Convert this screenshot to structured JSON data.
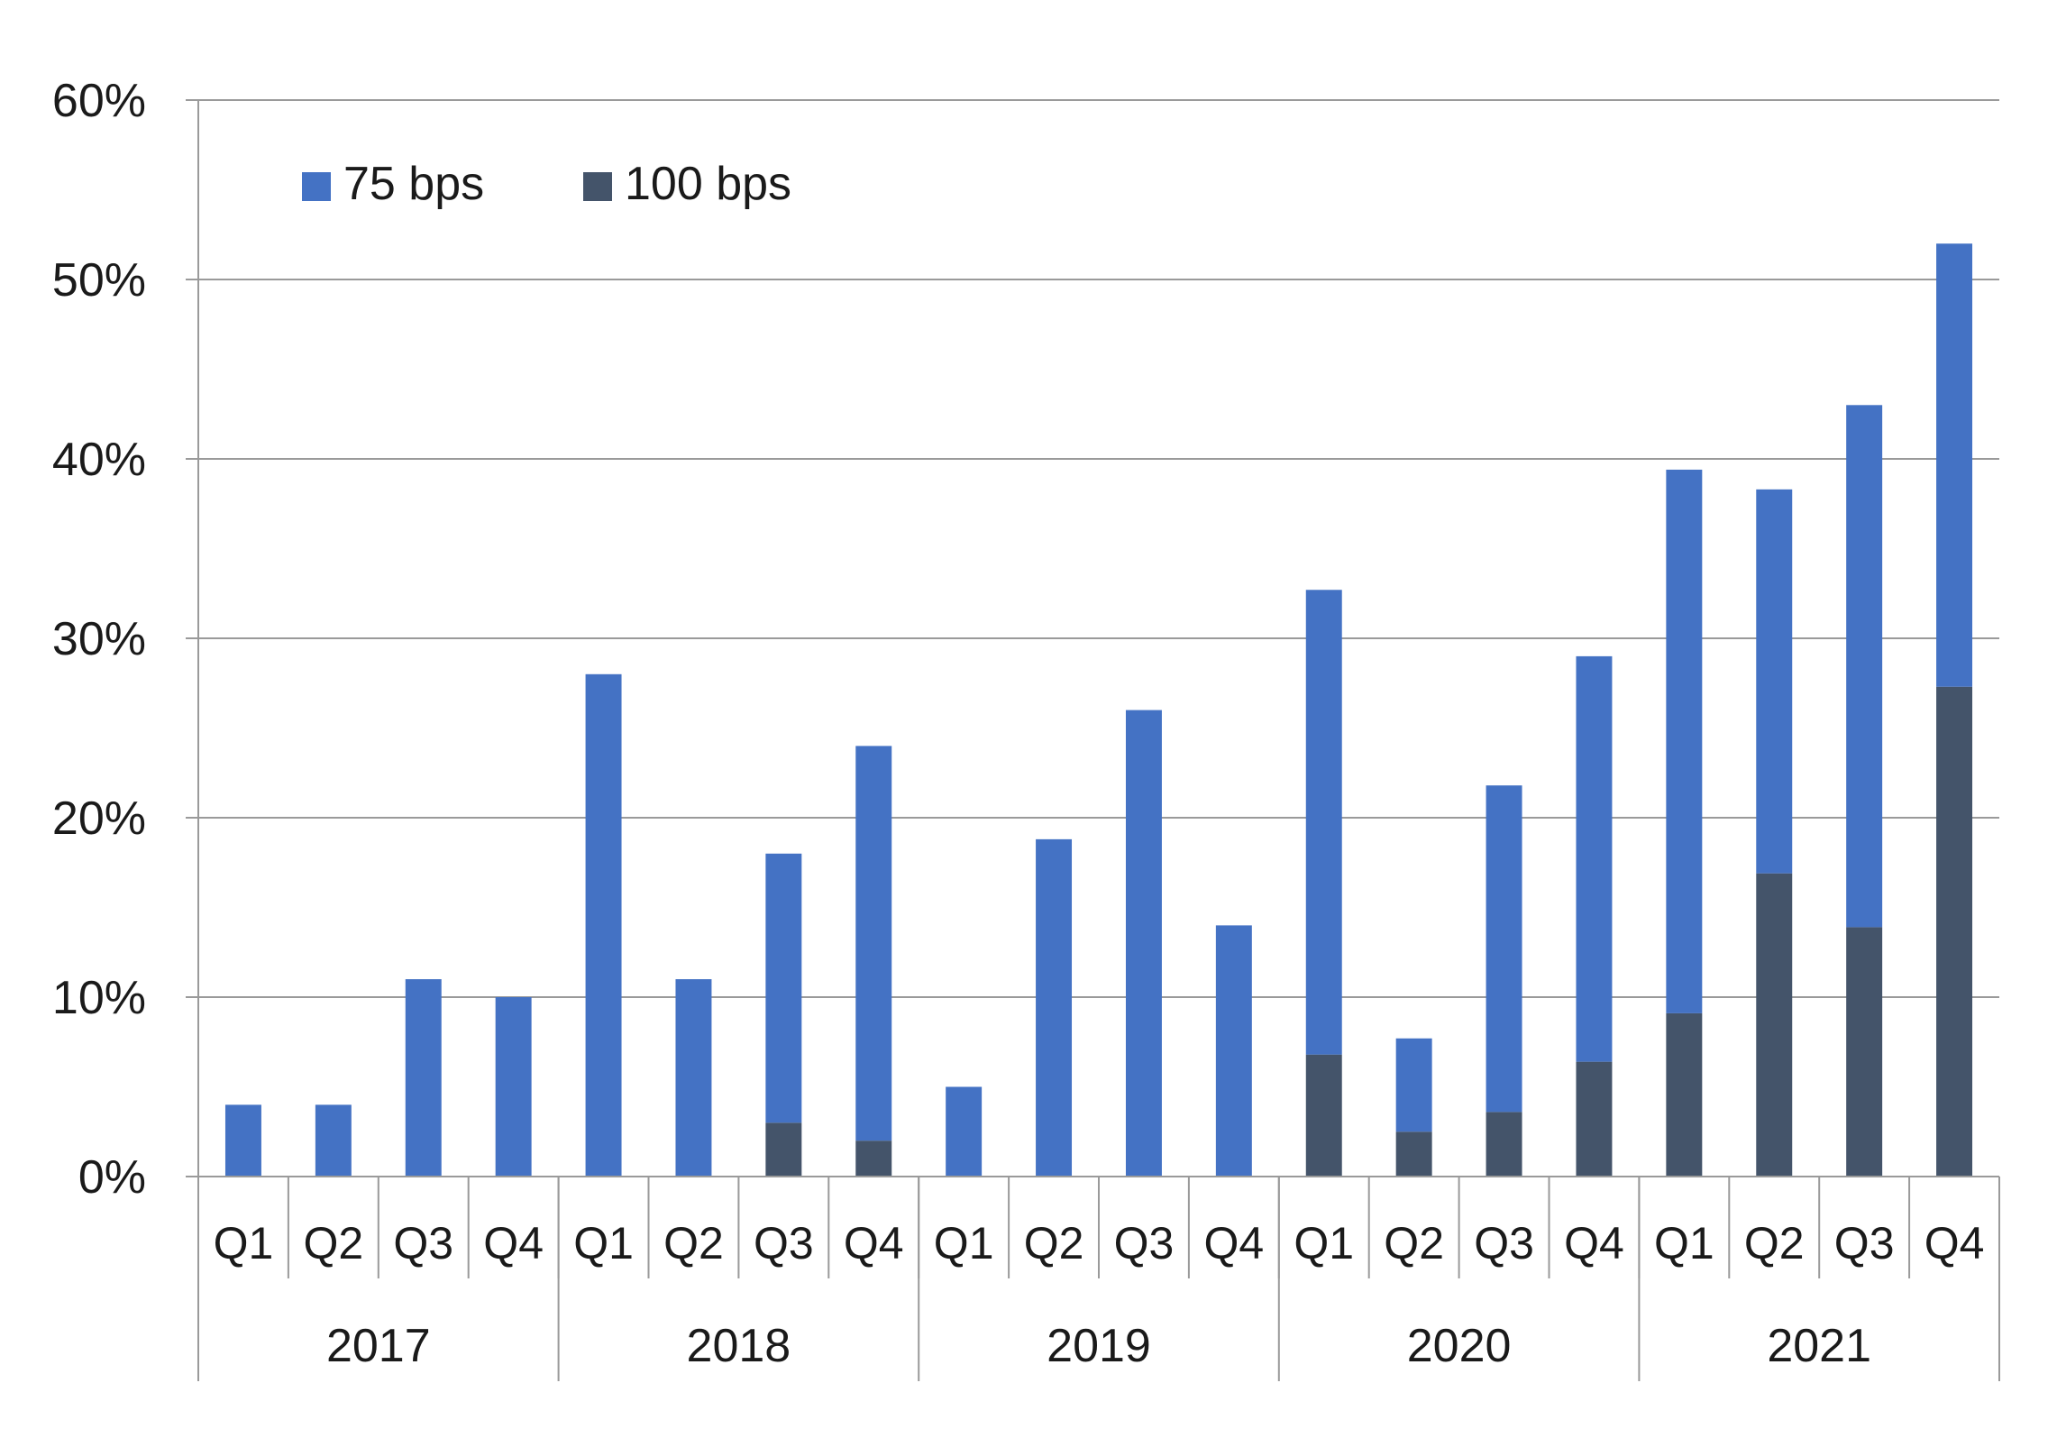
{
  "chart_data": {
    "type": "bar",
    "stacked": true,
    "title": "",
    "xlabel": "",
    "ylabel": "",
    "ylim": [
      0,
      60
    ],
    "yticks": [
      0,
      10,
      20,
      30,
      40,
      50,
      60
    ],
    "y_tick_format": "%",
    "grid": "horizontal",
    "legend_position": "top-left",
    "categories": [
      "Q1",
      "Q2",
      "Q3",
      "Q4",
      "Q1",
      "Q2",
      "Q3",
      "Q4",
      "Q1",
      "Q2",
      "Q3",
      "Q4",
      "Q1",
      "Q2",
      "Q3",
      "Q4",
      "Q1",
      "Q2",
      "Q3",
      "Q4"
    ],
    "groups": [
      {
        "label": "2017",
        "count": 4
      },
      {
        "label": "2018",
        "count": 4
      },
      {
        "label": "2019",
        "count": 4
      },
      {
        "label": "2020",
        "count": 4
      },
      {
        "label": "2021",
        "count": 4
      }
    ],
    "series": [
      {
        "name": "100 bps",
        "color": "#44546a",
        "values": [
          0,
          0,
          0,
          0,
          0,
          0,
          3,
          2,
          0,
          0,
          0,
          0,
          6.8,
          2.5,
          3.6,
          6.4,
          9.1,
          16.9,
          13.9,
          27.3
        ]
      },
      {
        "name": "75 bps",
        "color": "#4472c4",
        "values": [
          4,
          4,
          11,
          10,
          28,
          11,
          15,
          22,
          5,
          18.8,
          26,
          14,
          25.9,
          5.2,
          18.2,
          22.6,
          30.3,
          21.4,
          29.1,
          24.7
        ]
      }
    ],
    "legend_order": [
      "75 bps",
      "100 bps"
    ]
  }
}
